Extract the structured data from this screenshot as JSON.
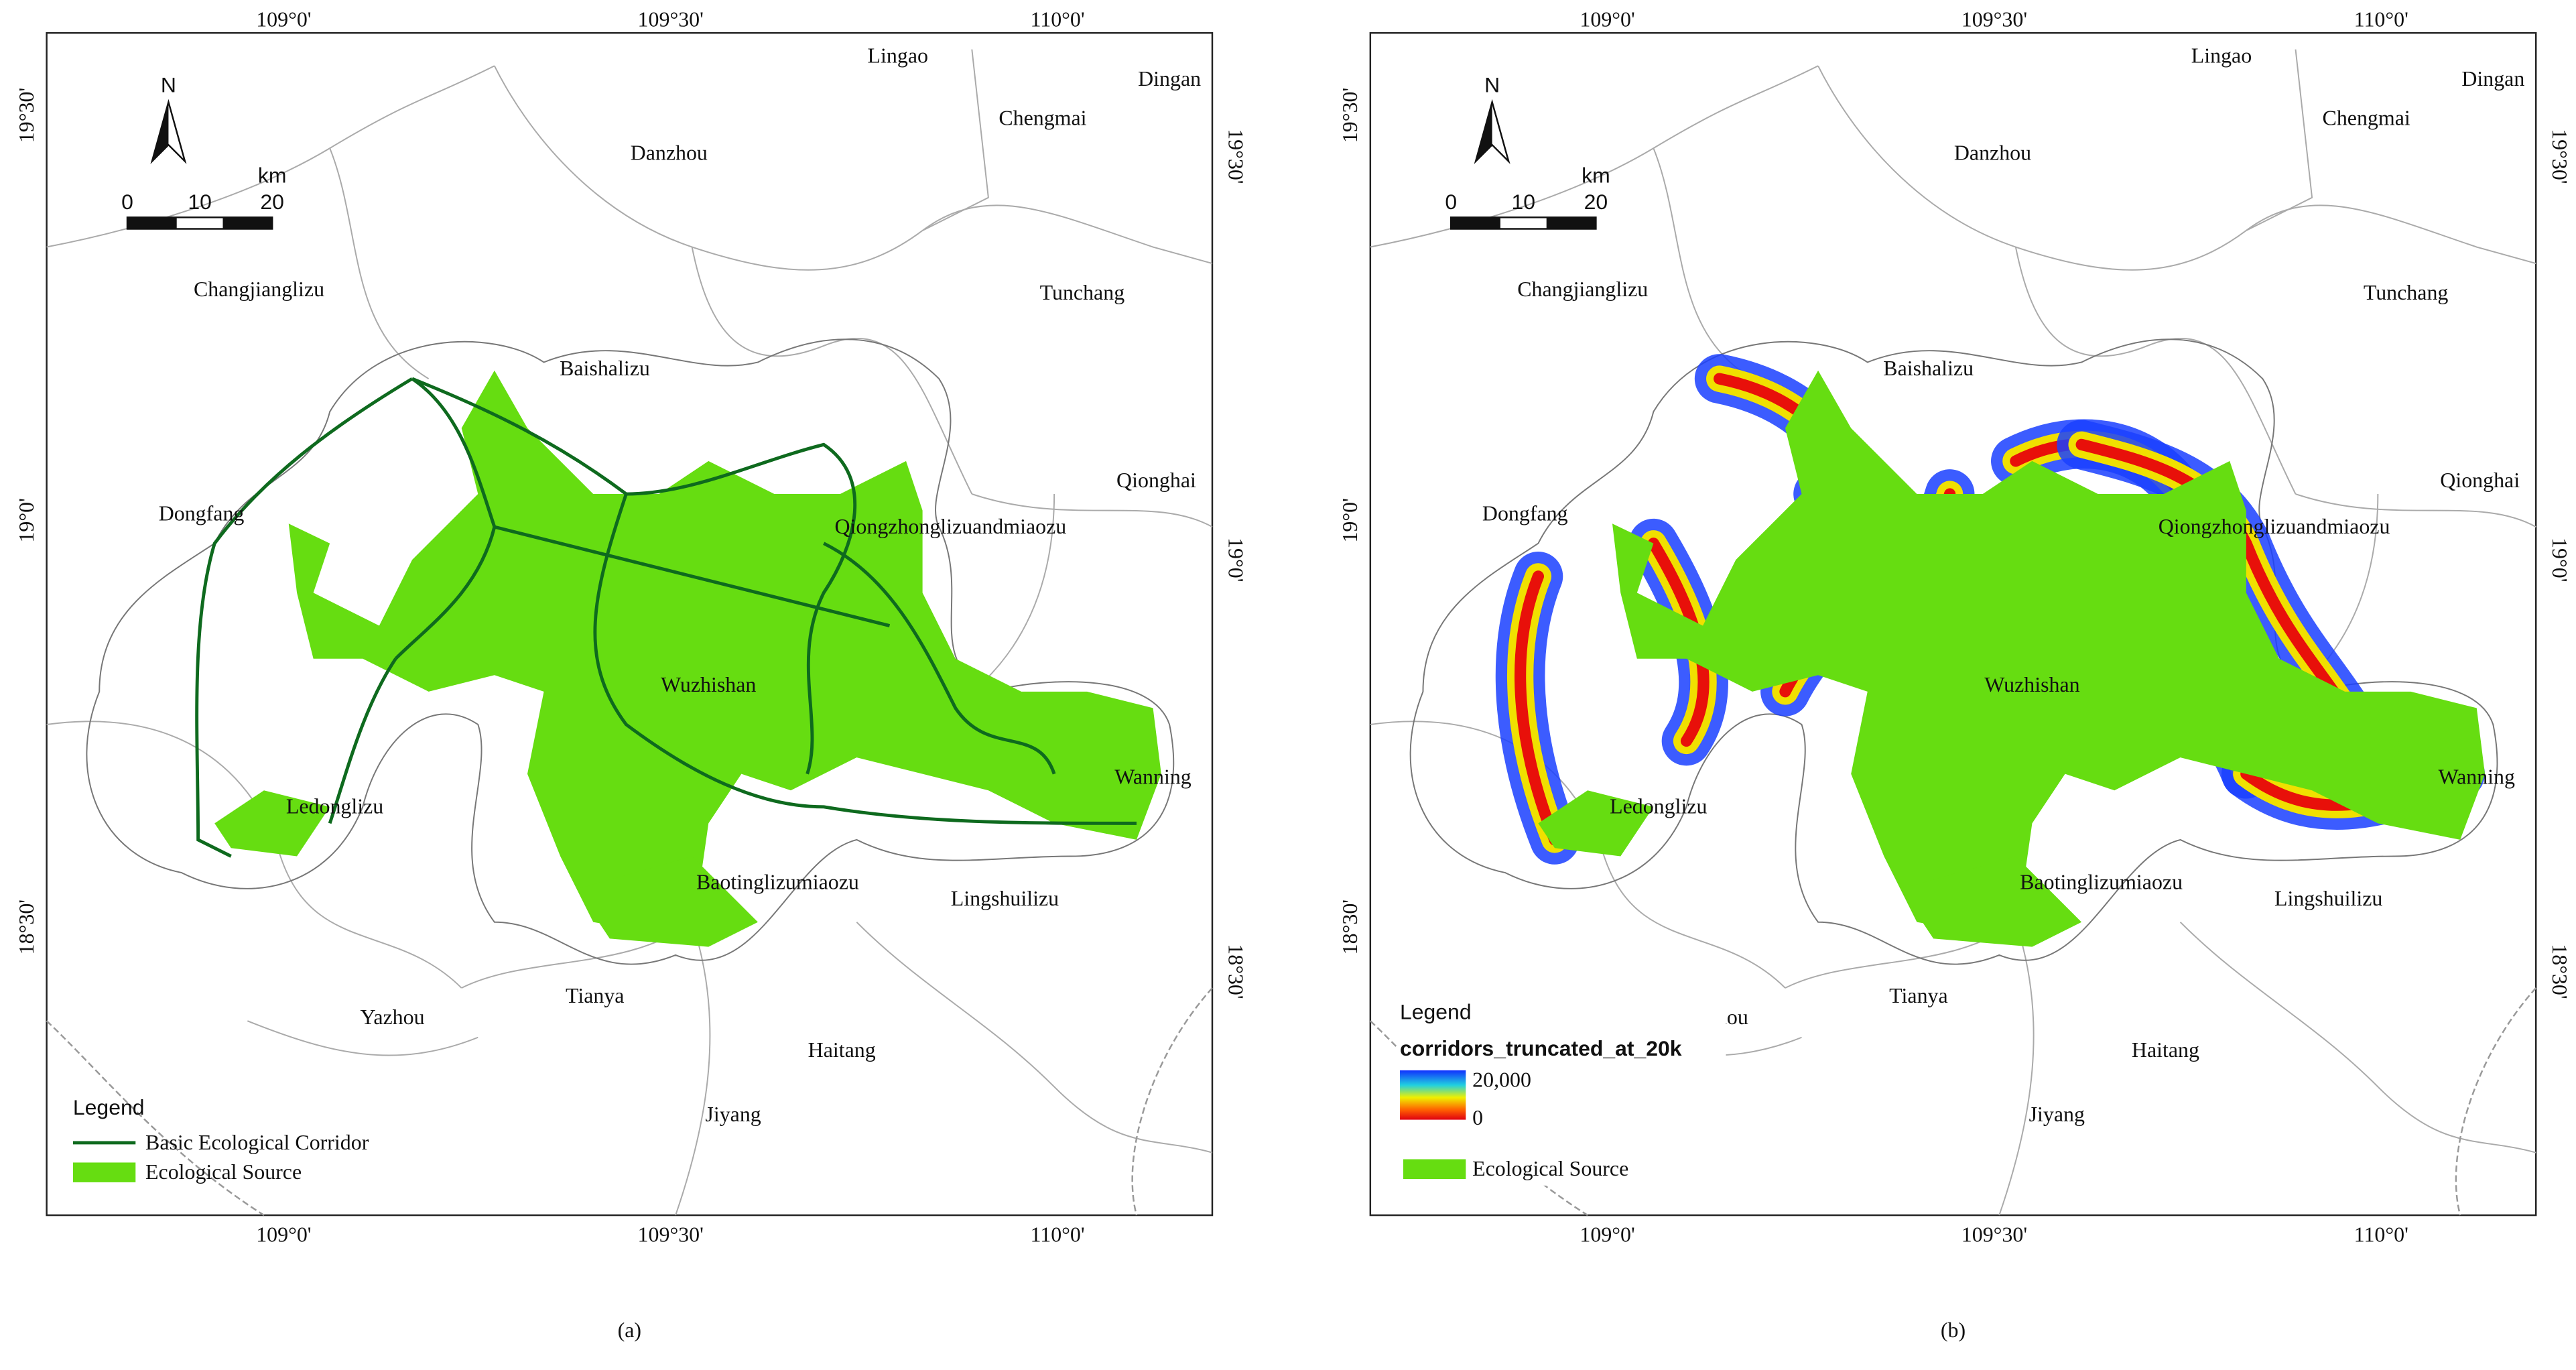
{
  "panels": [
    {
      "caption": "(a)",
      "north": "N",
      "scale": {
        "unit": "km",
        "ticks": [
          "0",
          "10",
          "20"
        ]
      },
      "graticule": {
        "longitudes": [
          "109°0'",
          "109°30'",
          "110°0'"
        ],
        "latitudes": [
          "19°30'",
          "19°0'",
          "18°30'"
        ]
      },
      "places": [
        "Lingao",
        "Dingan",
        "Chengmai",
        "Danzhou",
        "Changjianglizu",
        "Tunchang",
        "Baishalizu",
        "Qionghai",
        "Dongfang",
        "Qiongzhonglizuandmiaozu",
        "Wuzhishan",
        "Wanning",
        "Ledonglizu",
        "Baotinglizumiaozu",
        "Lingshuilizu",
        "Tianya",
        "Yazhou",
        "Haitang",
        "Jiyang"
      ],
      "legend": {
        "title": "Legend",
        "items": [
          "Basic Ecological Corridor",
          "Ecological Source"
        ]
      }
    },
    {
      "caption": "(b)",
      "north": "N",
      "scale": {
        "unit": "km",
        "ticks": [
          "0",
          "10",
          "20"
        ]
      },
      "graticule": {
        "longitudes": [
          "109°0'",
          "109°30'",
          "110°0'"
        ],
        "latitudes": [
          "19°30'",
          "19°0'",
          "18°30'"
        ]
      },
      "places": [
        "Lingao",
        "Dingan",
        "Chengmai",
        "Danzhou",
        "Changjianglizu",
        "Tunchang",
        "Baishalizu",
        "Qionghai",
        "Dongfang",
        "Qiongzhonglizuandmiaozu",
        "Wuzhishan",
        "Wanning",
        "Ledonglizu",
        "Baotinglizumiaozu",
        "Lingshuilizu",
        "Tianya",
        "Yazhou",
        "Haitang",
        "Jiyang"
      ],
      "legend": {
        "title": "Legend",
        "ramp": {
          "name": "corridors_truncated_at_20k",
          "high": "20,000",
          "low": "0"
        },
        "items": [
          "Ecological Source"
        ]
      }
    }
  ]
}
